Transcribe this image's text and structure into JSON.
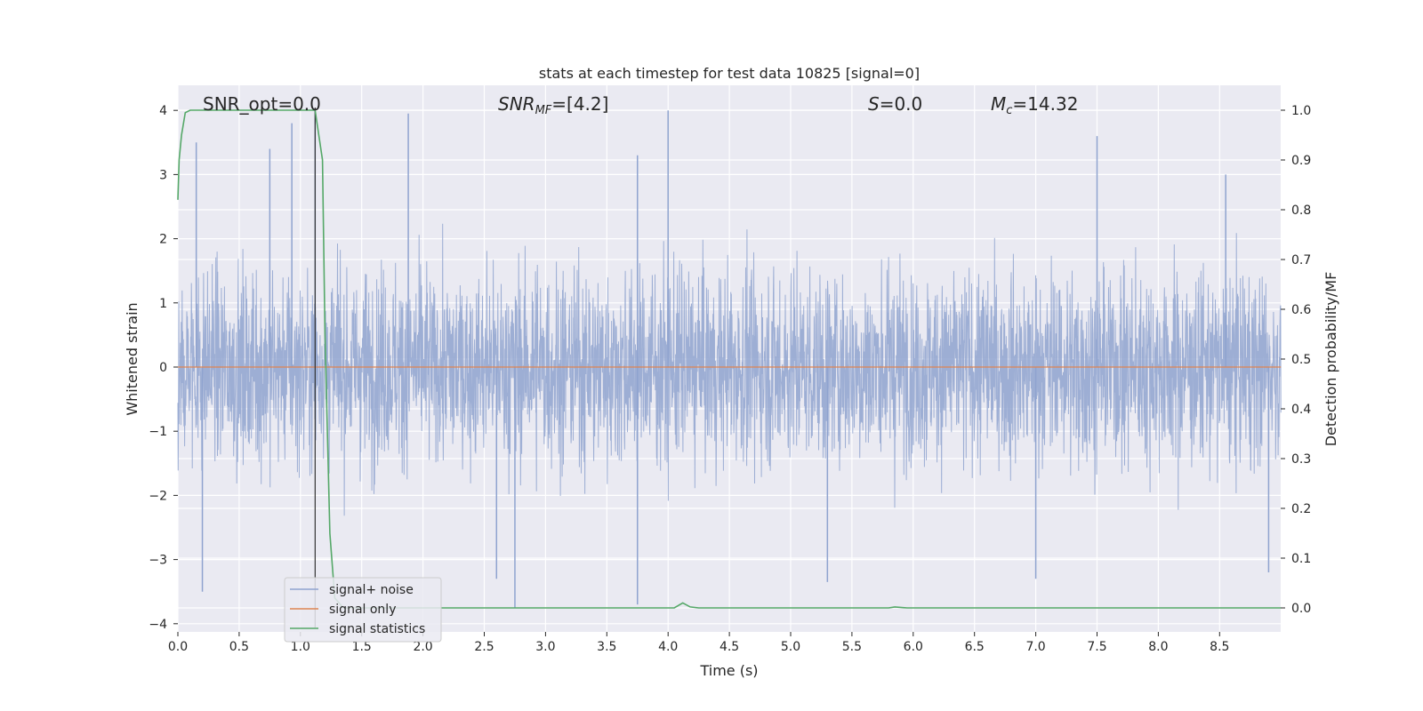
{
  "chart_data": {
    "type": "line",
    "title": "stats at each timestep for test data 10825 [signal=0]",
    "xlabel": "Time (s)",
    "ylabel": "Whitened strain",
    "y2label": "Detection probability/MF",
    "xlim": [
      0.0,
      9.0
    ],
    "ylim": [
      -4.25,
      4.4
    ],
    "y2lim": [
      -0.045,
      1.045
    ],
    "x_ticks": [
      0.0,
      0.5,
      1.0,
      1.5,
      2.0,
      2.5,
      3.0,
      3.5,
      4.0,
      4.5,
      5.0,
      5.5,
      6.0,
      6.5,
      7.0,
      7.5,
      8.0,
      8.5
    ],
    "x_tick_labels": [
      "0.0",
      "0.5",
      "1.0",
      "1.5",
      "2.0",
      "2.5",
      "3.0",
      "3.5",
      "4.0",
      "4.5",
      "5.0",
      "5.5",
      "6.0",
      "6.5",
      "7.0",
      "7.5",
      "8.0",
      "8.5"
    ],
    "y_ticks": [
      4,
      3,
      2,
      1,
      0,
      -1,
      -2,
      -3,
      -4
    ],
    "y_tick_labels": [
      "4",
      "3",
      "2",
      "1",
      "0",
      "−1",
      "−2",
      "−3",
      "−4"
    ],
    "y2_ticks": [
      1.0,
      0.9,
      0.8,
      0.7,
      0.6,
      0.5,
      0.4,
      0.3,
      0.2,
      0.1,
      0.0
    ],
    "y2_tick_labels": [
      "1.0",
      "0.9",
      "0.8",
      "0.7",
      "0.6",
      "0.5",
      "0.4",
      "0.3",
      "0.2",
      "0.1",
      "0.0"
    ],
    "grid": true,
    "legend_position": "lower-left",
    "annotations": {
      "snr_opt": "SNR_opt=0.0",
      "snr_mf_main": "SNR",
      "snr_mf_sub": "MF",
      "snr_mf_value": "=[4.2]",
      "s_main": "S",
      "s_value": "=0.0",
      "mc_main": "M",
      "mc_sub": "c",
      "mc_value": "=14.32"
    },
    "vline_x": 1.12,
    "noise_envelope": {
      "approx_range": [
        -3.8,
        4.0
      ],
      "peaks": [
        {
          "x": 0.15,
          "y": 3.5
        },
        {
          "x": 0.75,
          "y": 3.4
        },
        {
          "x": 0.93,
          "y": 3.8
        },
        {
          "x": 1.12,
          "y": 4.0
        },
        {
          "x": 1.88,
          "y": 3.95
        },
        {
          "x": 4.0,
          "y": 4.0
        },
        {
          "x": 3.75,
          "y": 3.3
        },
        {
          "x": 7.5,
          "y": 3.6
        },
        {
          "x": 8.55,
          "y": 3.0
        }
      ],
      "troughs": [
        {
          "x": 0.2,
          "y": -3.5
        },
        {
          "x": 2.75,
          "y": -3.75
        },
        {
          "x": 3.75,
          "y": -3.7
        },
        {
          "x": 2.6,
          "y": -3.3
        },
        {
          "x": 5.3,
          "y": -3.35
        },
        {
          "x": 7.0,
          "y": -3.3
        },
        {
          "x": 8.9,
          "y": -3.2
        }
      ]
    },
    "series": [
      {
        "name": "signal+ noise",
        "axis": "left",
        "color": "#8fa3cf"
      },
      {
        "name": "signal only",
        "axis": "left",
        "color": "#dd8452",
        "x": [
          0.0,
          9.0
        ],
        "y": [
          0.0,
          0.0
        ]
      },
      {
        "name": "signal statistics",
        "axis": "right",
        "color": "#55a868",
        "x": [
          0.0,
          0.01,
          0.03,
          0.06,
          0.1,
          0.2,
          0.4,
          0.6,
          0.8,
          1.0,
          1.05,
          1.12,
          1.18,
          1.2,
          1.24,
          1.28,
          1.35,
          2.0,
          3.0,
          4.0,
          4.05,
          4.12,
          4.18,
          4.25,
          5.0,
          5.2,
          5.8,
          5.85,
          5.95,
          6.5,
          7.0,
          8.0,
          9.0
        ],
        "y": [
          0.82,
          0.9,
          0.95,
          0.995,
          1.0,
          1.0,
          1.0,
          1.0,
          1.0,
          1.0,
          1.0,
          1.0,
          0.9,
          0.55,
          0.15,
          0.02,
          0.0,
          0.0,
          0.0,
          0.0,
          0.0,
          0.01,
          0.002,
          0.0,
          0.0,
          0.0,
          0.0,
          0.002,
          0.0,
          0.0,
          0.0,
          0.0,
          0.0
        ]
      }
    ]
  }
}
